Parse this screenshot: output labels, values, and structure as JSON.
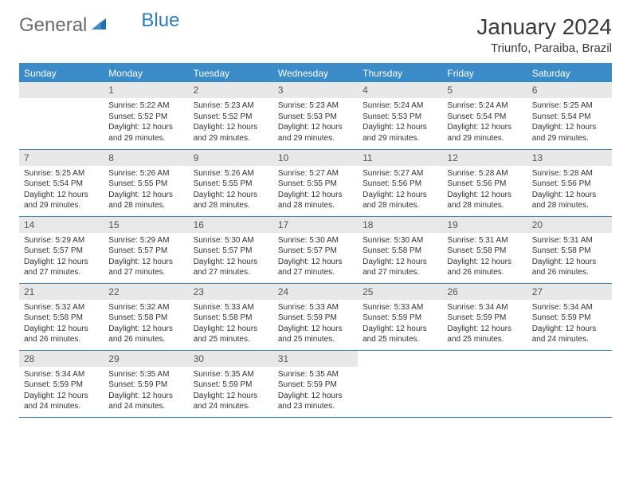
{
  "brand": {
    "part1": "General",
    "part2": "Blue"
  },
  "title": "January 2024",
  "location": "Triunfo, Paraiba, Brazil",
  "header_bg": "#3b8bc9",
  "weekdays": [
    "Sunday",
    "Monday",
    "Tuesday",
    "Wednesday",
    "Thursday",
    "Friday",
    "Saturday"
  ],
  "style": {
    "header_row_color": "#3b8bc9",
    "daynum_bg": "#e8e8e8",
    "rule_color": "#3b8bc9",
    "font_family": "Arial",
    "title_fontsize": 28,
    "weekday_fontsize": 12,
    "cell_fontsize": 10
  },
  "weeks": [
    [
      {
        "n": "",
        "lines": []
      },
      {
        "n": "1",
        "lines": [
          "Sunrise: 5:22 AM",
          "Sunset: 5:52 PM",
          "Daylight: 12 hours and 29 minutes."
        ]
      },
      {
        "n": "2",
        "lines": [
          "Sunrise: 5:23 AM",
          "Sunset: 5:52 PM",
          "Daylight: 12 hours and 29 minutes."
        ]
      },
      {
        "n": "3",
        "lines": [
          "Sunrise: 5:23 AM",
          "Sunset: 5:53 PM",
          "Daylight: 12 hours and 29 minutes."
        ]
      },
      {
        "n": "4",
        "lines": [
          "Sunrise: 5:24 AM",
          "Sunset: 5:53 PM",
          "Daylight: 12 hours and 29 minutes."
        ]
      },
      {
        "n": "5",
        "lines": [
          "Sunrise: 5:24 AM",
          "Sunset: 5:54 PM",
          "Daylight: 12 hours and 29 minutes."
        ]
      },
      {
        "n": "6",
        "lines": [
          "Sunrise: 5:25 AM",
          "Sunset: 5:54 PM",
          "Daylight: 12 hours and 29 minutes."
        ]
      }
    ],
    [
      {
        "n": "7",
        "lines": [
          "Sunrise: 5:25 AM",
          "Sunset: 5:54 PM",
          "Daylight: 12 hours and 29 minutes."
        ]
      },
      {
        "n": "8",
        "lines": [
          "Sunrise: 5:26 AM",
          "Sunset: 5:55 PM",
          "Daylight: 12 hours and 28 minutes."
        ]
      },
      {
        "n": "9",
        "lines": [
          "Sunrise: 5:26 AM",
          "Sunset: 5:55 PM",
          "Daylight: 12 hours and 28 minutes."
        ]
      },
      {
        "n": "10",
        "lines": [
          "Sunrise: 5:27 AM",
          "Sunset: 5:55 PM",
          "Daylight: 12 hours and 28 minutes."
        ]
      },
      {
        "n": "11",
        "lines": [
          "Sunrise: 5:27 AM",
          "Sunset: 5:56 PM",
          "Daylight: 12 hours and 28 minutes."
        ]
      },
      {
        "n": "12",
        "lines": [
          "Sunrise: 5:28 AM",
          "Sunset: 5:56 PM",
          "Daylight: 12 hours and 28 minutes."
        ]
      },
      {
        "n": "13",
        "lines": [
          "Sunrise: 5:28 AM",
          "Sunset: 5:56 PM",
          "Daylight: 12 hours and 28 minutes."
        ]
      }
    ],
    [
      {
        "n": "14",
        "lines": [
          "Sunrise: 5:29 AM",
          "Sunset: 5:57 PM",
          "Daylight: 12 hours and 27 minutes."
        ]
      },
      {
        "n": "15",
        "lines": [
          "Sunrise: 5:29 AM",
          "Sunset: 5:57 PM",
          "Daylight: 12 hours and 27 minutes."
        ]
      },
      {
        "n": "16",
        "lines": [
          "Sunrise: 5:30 AM",
          "Sunset: 5:57 PM",
          "Daylight: 12 hours and 27 minutes."
        ]
      },
      {
        "n": "17",
        "lines": [
          "Sunrise: 5:30 AM",
          "Sunset: 5:57 PM",
          "Daylight: 12 hours and 27 minutes."
        ]
      },
      {
        "n": "18",
        "lines": [
          "Sunrise: 5:30 AM",
          "Sunset: 5:58 PM",
          "Daylight: 12 hours and 27 minutes."
        ]
      },
      {
        "n": "19",
        "lines": [
          "Sunrise: 5:31 AM",
          "Sunset: 5:58 PM",
          "Daylight: 12 hours and 26 minutes."
        ]
      },
      {
        "n": "20",
        "lines": [
          "Sunrise: 5:31 AM",
          "Sunset: 5:58 PM",
          "Daylight: 12 hours and 26 minutes."
        ]
      }
    ],
    [
      {
        "n": "21",
        "lines": [
          "Sunrise: 5:32 AM",
          "Sunset: 5:58 PM",
          "Daylight: 12 hours and 26 minutes."
        ]
      },
      {
        "n": "22",
        "lines": [
          "Sunrise: 5:32 AM",
          "Sunset: 5:58 PM",
          "Daylight: 12 hours and 26 minutes."
        ]
      },
      {
        "n": "23",
        "lines": [
          "Sunrise: 5:33 AM",
          "Sunset: 5:58 PM",
          "Daylight: 12 hours and 25 minutes."
        ]
      },
      {
        "n": "24",
        "lines": [
          "Sunrise: 5:33 AM",
          "Sunset: 5:59 PM",
          "Daylight: 12 hours and 25 minutes."
        ]
      },
      {
        "n": "25",
        "lines": [
          "Sunrise: 5:33 AM",
          "Sunset: 5:59 PM",
          "Daylight: 12 hours and 25 minutes."
        ]
      },
      {
        "n": "26",
        "lines": [
          "Sunrise: 5:34 AM",
          "Sunset: 5:59 PM",
          "Daylight: 12 hours and 25 minutes."
        ]
      },
      {
        "n": "27",
        "lines": [
          "Sunrise: 5:34 AM",
          "Sunset: 5:59 PM",
          "Daylight: 12 hours and 24 minutes."
        ]
      }
    ],
    [
      {
        "n": "28",
        "lines": [
          "Sunrise: 5:34 AM",
          "Sunset: 5:59 PM",
          "Daylight: 12 hours and 24 minutes."
        ]
      },
      {
        "n": "29",
        "lines": [
          "Sunrise: 5:35 AM",
          "Sunset: 5:59 PM",
          "Daylight: 12 hours and 24 minutes."
        ]
      },
      {
        "n": "30",
        "lines": [
          "Sunrise: 5:35 AM",
          "Sunset: 5:59 PM",
          "Daylight: 12 hours and 24 minutes."
        ]
      },
      {
        "n": "31",
        "lines": [
          "Sunrise: 5:35 AM",
          "Sunset: 5:59 PM",
          "Daylight: 12 hours and 23 minutes."
        ]
      },
      {
        "n": "",
        "lines": []
      },
      {
        "n": "",
        "lines": []
      },
      {
        "n": "",
        "lines": []
      }
    ]
  ]
}
